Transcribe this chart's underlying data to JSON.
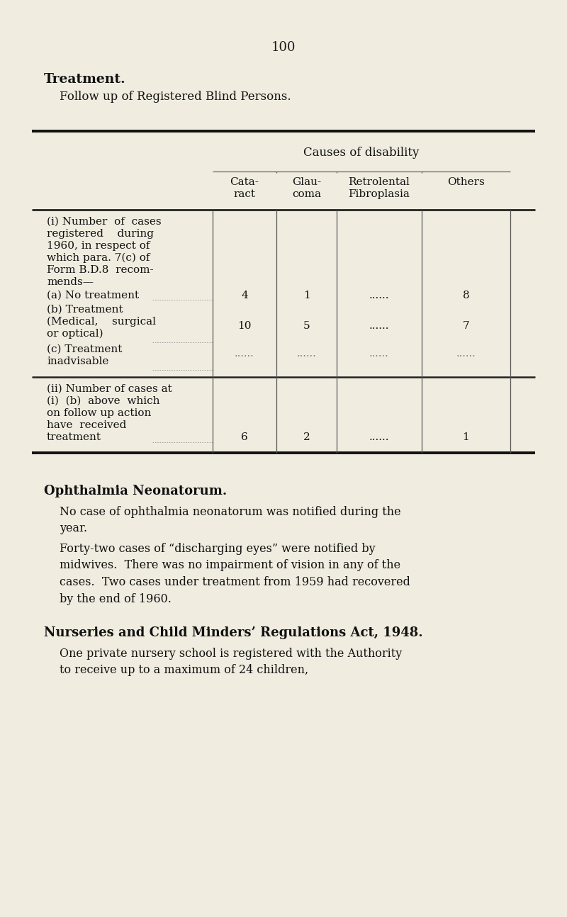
{
  "bg_color": "#f0ece0",
  "page_number": "100",
  "title_bold": "Treatment.",
  "subtitle": "Follow up of Registered Blind Persons.",
  "table_header_span": "Causes of disability",
  "col_headers": [
    "Cata-\nract",
    "Glau-\ncoma",
    "Retrolental\nFibroplasia",
    "Others"
  ],
  "row_section1_label_lines": [
    "(i) Number  of  cases",
    "registered    during",
    "1960, in respect of",
    "which para. 7(c) of",
    "Form B.D.8  recom-",
    "mends—"
  ],
  "row_a_label": "(a) No treatment",
  "row_b_label_lines": [
    "(b) Treatment",
    "(Medical,    surgical",
    "or optical)"
  ],
  "row_c_label_lines": [
    "(c) Treatment",
    "inadvisable"
  ],
  "row_a_values": [
    "4",
    "1",
    "......",
    "8"
  ],
  "row_b_values": [
    "10",
    "5",
    "......",
    "7"
  ],
  "row_c_values": [
    "......",
    "......",
    "......",
    "......"
  ],
  "row_section2_label_lines": [
    "(ii) Number of cases at",
    "(i)  (b)  above  which",
    "on follow up action",
    "have  received",
    "treatment"
  ],
  "row_ii_values": [
    "6",
    "2",
    "......",
    "1"
  ],
  "section2_heading": "Ophthalmia Neonatorum.",
  "section2_para1": "No case of ophthalmia neonatorum was notified during the\nyear.",
  "section2_para2": "Forty-two cases of “discharging eyes” were notified by\nmidwives.  There was no impairment of vision in any of the\ncases.  Two cases under treatment from 1959 had recovered\nby the end of 1960.",
  "section3_heading": "Nurseries and Child Minders’ Regulations Act, 1948.",
  "section3_para": "One private nursery school is registered with the Authority\nto receive up to a maximum of 24 children,"
}
